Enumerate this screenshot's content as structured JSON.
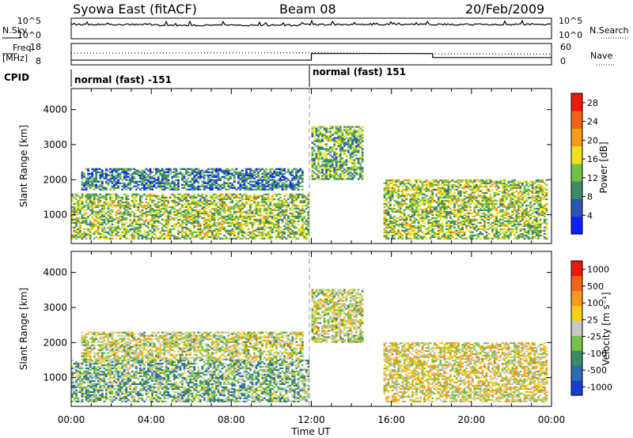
{
  "header": {
    "station": "Syowa East (fitACF)",
    "beam": "Beam 08",
    "date": "20/Feb/2009"
  },
  "strip_labels": {
    "nsky": "N.Sky",
    "nsearch": "N.Search",
    "freq_line1": "Freq.",
    "freq_line2": "[MHz]",
    "nave": "Nave",
    "cpid": "CPID"
  },
  "nsky_axis": {
    "top": "10^5",
    "bottom": "10^0"
  },
  "nsearch_axis": {
    "top": "10^5",
    "bottom": "10^0"
  },
  "freq_axis": {
    "ticks": [
      "18",
      "8"
    ],
    "range": [
      8,
      18
    ]
  },
  "nave_axis": {
    "ticks": [
      "60",
      "0"
    ],
    "range": [
      0,
      60
    ]
  },
  "cpid_segments": [
    {
      "label": "normal (fast) -151",
      "start_hour": 0,
      "end_hour": 12
    },
    {
      "label": "normal (fast) 151",
      "start_hour": 12,
      "end_hour": 24
    }
  ],
  "time_axis": {
    "label": "Time UT",
    "ticks": [
      "00:00",
      "04:00",
      "08:00",
      "12:00",
      "16:00",
      "20:00",
      "00:00"
    ],
    "range_hours": [
      0,
      24
    ]
  },
  "chart_data": [
    {
      "type": "heatmap",
      "parameter": "power",
      "ylabel": "Slant Range [km]",
      "yticks": [
        "4000",
        "3000",
        "2000",
        "1000"
      ],
      "ylim": [
        180,
        4600
      ],
      "xlim_hours": [
        0,
        24
      ],
      "colorbar_label": "Power [dB]",
      "colorbar_ticks": [
        "28",
        "24",
        "20",
        "16",
        "12",
        "8",
        "4"
      ],
      "colorbar_range": [
        0,
        30
      ],
      "colors": [
        "#0a22ff",
        "#2a58b0",
        "#3e8c64",
        "#72c04a",
        "#f0e01e",
        "#f49a1c",
        "#f06414",
        "#ee1a10"
      ],
      "echo_regions": [
        {
          "start_hour": 0.0,
          "end_hour": 11.8,
          "range_min": 300,
          "range_max": 1600,
          "typical_value": 14
        },
        {
          "start_hour": 0.5,
          "end_hour": 11.5,
          "range_min": 1700,
          "range_max": 2300,
          "typical_value": 8
        },
        {
          "start_hour": 12.0,
          "end_hour": 14.5,
          "range_min": 2000,
          "range_max": 3500,
          "typical_value": 12
        },
        {
          "start_hour": 15.6,
          "end_hour": 23.8,
          "range_min": 300,
          "range_max": 2000,
          "typical_value": 14
        }
      ]
    },
    {
      "type": "heatmap",
      "parameter": "velocity",
      "ylabel": "Slant Range [km]",
      "yticks": [
        "4000",
        "3000",
        "2000",
        "1000"
      ],
      "ylim": [
        180,
        4600
      ],
      "xlim_hours": [
        0,
        24
      ],
      "colorbar_label": "Velocity [m s⁻¹]",
      "colorbar_ticks": [
        "1000",
        "500",
        "100",
        "25",
        "-25",
        "-100",
        "-500",
        "-1000"
      ],
      "colorbar_range": [
        -1250,
        1250
      ],
      "colors": [
        "#1a3cd0",
        "#2a6cb0",
        "#3e8a62",
        "#74c44a",
        "#c8c8c8",
        "#f6d01c",
        "#f59a1e",
        "#f2641a",
        "#e81a12"
      ],
      "echo_regions": [
        {
          "start_hour": 0.0,
          "end_hour": 11.8,
          "range_min": 300,
          "range_max": 1500,
          "typical_value": -300
        },
        {
          "start_hour": 0.5,
          "end_hour": 11.5,
          "range_min": 1500,
          "range_max": 2300,
          "typical_value": 0
        },
        {
          "start_hour": 12.0,
          "end_hour": 14.5,
          "range_min": 2000,
          "range_max": 3500,
          "typical_value": 0
        },
        {
          "start_hour": 15.6,
          "end_hour": 23.8,
          "range_min": 300,
          "range_max": 2000,
          "typical_value": 150
        }
      ]
    }
  ]
}
